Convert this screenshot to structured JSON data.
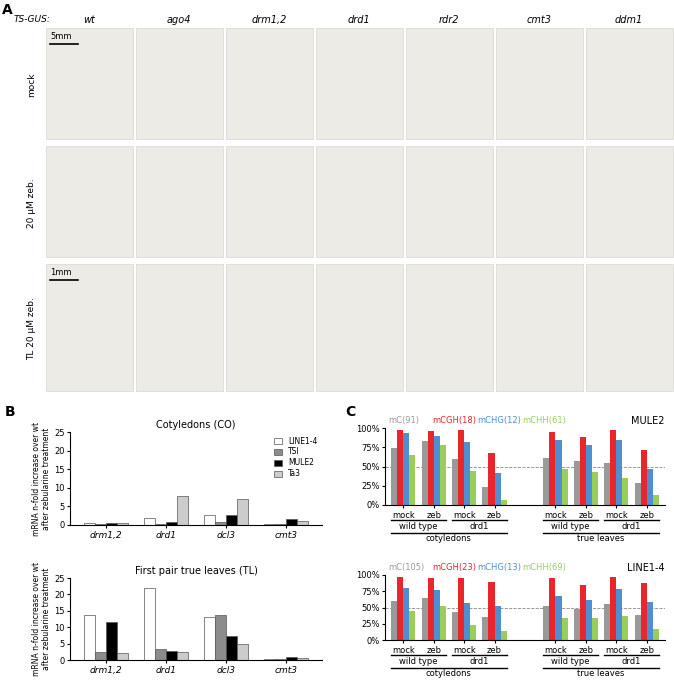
{
  "panel_a": {
    "label": "A",
    "construct": "TS-GUS:",
    "genotypes": [
      "wt",
      "ago4",
      "drm1,2",
      "drd1",
      "rdr2",
      "cmt3",
      "ddm1"
    ],
    "rows": [
      "mock",
      "20 µM zeb.",
      "TL 20 µM zeb."
    ],
    "scale_bars": [
      {
        "row": 0,
        "label": "5mm"
      },
      {
        "row": 2,
        "label": "1mm"
      }
    ]
  },
  "chart_data": [
    {
      "panel": "B",
      "type": "bar",
      "title": "Cotyledons (CO)",
      "y_label": "mRNA n-fold increase over wt\nafter zebularine treatment",
      "categories": [
        "drm1,2",
        "drd1",
        "dcl3",
        "cmt3"
      ],
      "series": [
        {
          "name": "LINE1-4",
          "color": "#ffffff",
          "values": [
            0.6,
            1.8,
            2.7,
            0.2
          ]
        },
        {
          "name": "TSI",
          "color": "#8c8c8c",
          "values": [
            0.3,
            0.3,
            0.8,
            0.3
          ]
        },
        {
          "name": "MULE2",
          "color": "#000000",
          "values": [
            0.5,
            0.8,
            2.6,
            1.5
          ]
        },
        {
          "name": "Ta3",
          "color": "#cccccc",
          "values": [
            0.6,
            7.8,
            7.1,
            1.0
          ]
        }
      ],
      "ylim": [
        0,
        25
      ],
      "yticks": [
        0,
        5,
        10,
        15,
        20,
        25
      ],
      "legend": "upper right"
    },
    {
      "type": "bar",
      "title": "First pair true leaves (TL)",
      "y_label": "mRNA n-fold increase over wt\nafter zebularine treatment",
      "categories": [
        "drm1,2",
        "drd1",
        "dcl3",
        "cmt3"
      ],
      "series": [
        {
          "name": "LINE1-4",
          "color": "#ffffff",
          "values": [
            13.6,
            21.8,
            13.2,
            0.3
          ]
        },
        {
          "name": "TSI",
          "color": "#8c8c8c",
          "values": [
            2.5,
            3.5,
            13.8,
            0.4
          ]
        },
        {
          "name": "MULE2",
          "color": "#000000",
          "values": [
            11.7,
            2.7,
            7.3,
            1.0
          ]
        },
        {
          "name": "Ta3",
          "color": "#cccccc",
          "values": [
            2.0,
            2.3,
            4.9,
            0.6
          ]
        }
      ],
      "ylim": [
        0,
        25
      ],
      "yticks": [
        0,
        5,
        10,
        15,
        20,
        25
      ]
    },
    {
      "panel": "C",
      "type": "bar",
      "title": "MULE2",
      "categories": [
        "mock",
        "zeb",
        "mock",
        "zeb",
        null,
        "mock",
        "zeb",
        "mock",
        "zeb"
      ],
      "genotypes": [
        "wild type",
        "drd1",
        "wild type",
        "drd1"
      ],
      "tissues": [
        "cotyledons",
        "true leaves"
      ],
      "series": [
        {
          "name": "mC(91)",
          "color": "#999999",
          "values": [
            74,
            83,
            60,
            23,
            null,
            61,
            57,
            54,
            29
          ]
        },
        {
          "name": "mCGH(18)",
          "color": "#e8262b",
          "values": [
            97,
            96,
            97,
            68,
            null,
            95,
            88,
            97,
            72
          ]
        },
        {
          "name": "mCHG(12)",
          "color": "#4f8fd0",
          "values": [
            93,
            89,
            82,
            42,
            null,
            85,
            78,
            84,
            47
          ]
        },
        {
          "name": "mCHH(61)",
          "color": "#9acd5a",
          "values": [
            65,
            78,
            44,
            6,
            null,
            47,
            43,
            35,
            13
          ]
        }
      ],
      "ylim": [
        0,
        100
      ],
      "yticks": [
        {
          "value": 0,
          "label": "0%"
        },
        {
          "value": 25,
          "label": "25%"
        },
        {
          "value": 50,
          "label": "50%"
        },
        {
          "value": 75,
          "label": "75%"
        },
        {
          "value": 100,
          "label": "100%"
        }
      ],
      "hline": 50
    },
    {
      "type": "bar",
      "title": "LINE1-4",
      "categories": [
        "mock",
        "zeb",
        "mock",
        "zeb",
        null,
        "mock",
        "zeb",
        "mock",
        "zeb"
      ],
      "genotypes": [
        "wild type",
        "drd1",
        "wild type",
        "drd1"
      ],
      "tissues": [
        "cotyledons",
        "true leaves"
      ],
      "series": [
        {
          "name": "mC(105)",
          "color": "#999999",
          "values": [
            60,
            64,
            43,
            36,
            null,
            52,
            48,
            55,
            38
          ]
        },
        {
          "name": "mCGH(23)",
          "color": "#e8262b",
          "values": [
            97,
            95,
            95,
            89,
            null,
            96,
            85,
            97,
            87
          ]
        },
        {
          "name": "mCHG(13)",
          "color": "#4f8fd0",
          "values": [
            80,
            77,
            57,
            53,
            null,
            67,
            61,
            78,
            59
          ]
        },
        {
          "name": "mCHH(69)",
          "color": "#9acd5a",
          "values": [
            45,
            53,
            23,
            14,
            null,
            34,
            34,
            37,
            17
          ]
        }
      ],
      "ylim": [
        0,
        100
      ],
      "yticks": [
        {
          "value": 0,
          "label": "0%"
        },
        {
          "value": 25,
          "label": "25%"
        },
        {
          "value": 50,
          "label": "50%"
        },
        {
          "value": 75,
          "label": "75%"
        },
        {
          "value": 100,
          "label": "100%"
        }
      ],
      "hline": 50
    }
  ]
}
